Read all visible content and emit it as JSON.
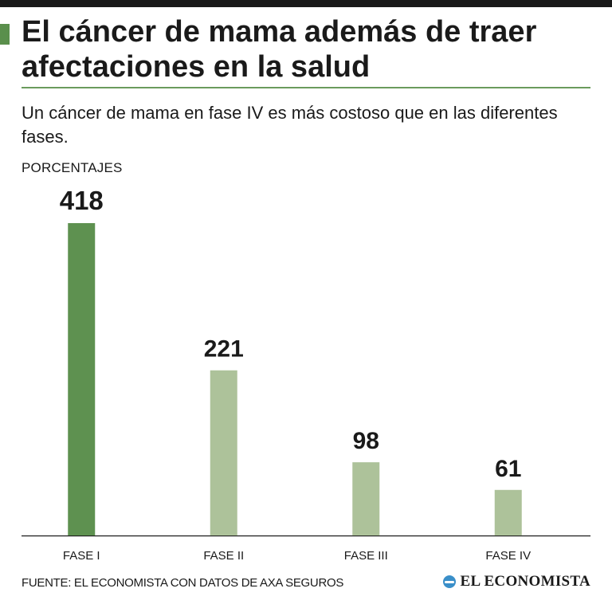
{
  "header": {
    "title": "El cáncer de mama además de traer afectaciones en la salud",
    "subtitle": "Un cáncer de mama en fase IV es más costoso que en las diferentes fases.",
    "unit_label": "PORCENTAJES"
  },
  "footer": {
    "source": "FUENTE: EL ECONOMISTA CON DATOS DE AXA SEGUROS",
    "brand": "EL ECONOMISTA",
    "brand_logo_icon": "globe-icon"
  },
  "colors": {
    "highlight_bar": "#5e9150",
    "bar": "#adc29a",
    "axis": "#1a1a1a",
    "accent": "#5a8f4c"
  },
  "chart_data": {
    "type": "bar",
    "categories": [
      "FASE I",
      "FASE II",
      "FASE III",
      "FASE IV"
    ],
    "values": [
      418,
      221,
      98,
      61
    ],
    "highlight_index": 0,
    "ylim": [
      0,
      418
    ],
    "grid": false,
    "legend": "none"
  }
}
